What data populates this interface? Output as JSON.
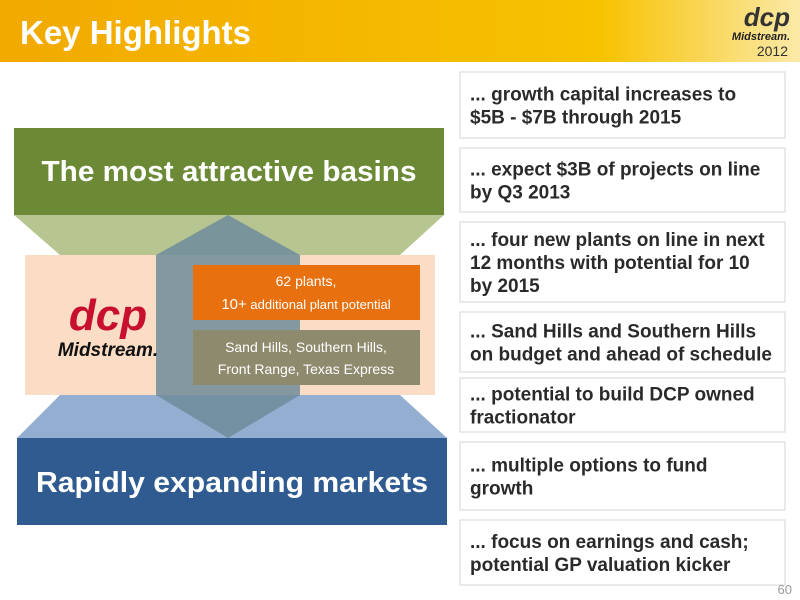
{
  "header": {
    "title": "Key Highlights",
    "logo": {
      "mark": "dcp",
      "name": "Midstream.",
      "year": "2012"
    }
  },
  "diagram": {
    "top_banner": "The most attractive basins",
    "bottom_banner": "Rapidly expanding markets",
    "logo": {
      "mark": "dcp",
      "name": "Midstream."
    },
    "plants_box": {
      "line1": "62 plants,",
      "line2_number": "10+",
      "line2_text": "additional plant potential"
    },
    "pipelines_box": {
      "lines": [
        "Sand Hills, Southern Hills,",
        "Front Range, Texas Express"
      ]
    }
  },
  "highlights": [
    {
      "lines": [
        "... growth capital increases to",
        "$5B - $7B through 2015"
      ]
    },
    {
      "lines": [
        "... expect $3B of projects on line",
        "by Q3 2013"
      ]
    },
    {
      "lines": [
        "... four new plants on line in next",
        "12 months with  potential for 10",
        "by 2015"
      ]
    },
    {
      "lines": [
        "... Sand Hills and Southern Hills",
        "on budget and ahead of schedule"
      ]
    },
    {
      "lines": [
        "... potential to build DCP owned",
        "fractionator"
      ]
    },
    {
      "lines": [
        "... multiple options to fund",
        "growth"
      ]
    },
    {
      "lines": [
        "... focus on earnings and cash;",
        "potential GP valuation kicker"
      ]
    }
  ],
  "page_number": "60"
}
